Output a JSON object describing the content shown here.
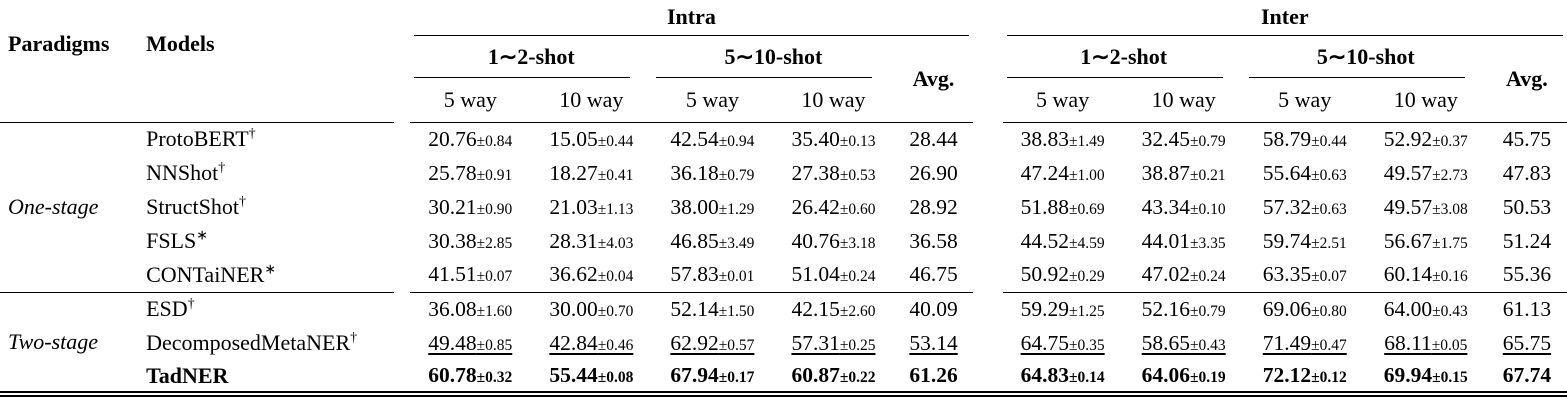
{
  "header": {
    "paradigms": "Paradigms",
    "models": "Models",
    "intra": "Intra",
    "inter": "Inter",
    "shot12": "1∼2-shot",
    "shot510": "5∼10-shot",
    "way5": "5 way",
    "way10": "10 way",
    "avg": "Avg."
  },
  "chart_data": {
    "type": "table",
    "title": "Few-shot NER results: Intra and Inter settings, F1 with std dev",
    "column_groups": [
      "Intra 1∼2-shot 5 way",
      "Intra 1∼2-shot 10 way",
      "Intra 5∼10-shot 5 way",
      "Intra 5∼10-shot 10 way",
      "Intra Avg.",
      "Inter 1∼2-shot 5 way",
      "Inter 1∼2-shot 10 way",
      "Inter 5∼10-shot 5 way",
      "Inter 5∼10-shot 10 way",
      "Inter Avg."
    ]
  },
  "table": {
    "groups": [
      {
        "paradigm": "One-stage",
        "rows": [
          {
            "model": "ProtoBERT",
            "sup": "†",
            "style": "normal",
            "cells": [
              "20.76±0.84",
              "15.05±0.44",
              "42.54±0.94",
              "35.40±0.13",
              "28.44",
              "38.83±1.49",
              "32.45±0.79",
              "58.79±0.44",
              "52.92±0.37",
              "45.75"
            ]
          },
          {
            "model": "NNShot",
            "sup": "†",
            "style": "normal",
            "cells": [
              "25.78±0.91",
              "18.27±0.41",
              "36.18±0.79",
              "27.38±0.53",
              "26.90",
              "47.24±1.00",
              "38.87±0.21",
              "55.64±0.63",
              "49.57±2.73",
              "47.83"
            ]
          },
          {
            "model": "StructShot",
            "sup": "†",
            "style": "normal",
            "cells": [
              "30.21±0.90",
              "21.03±1.13",
              "38.00±1.29",
              "26.42±0.60",
              "28.92",
              "51.88±0.69",
              "43.34±0.10",
              "57.32±0.63",
              "49.57±3.08",
              "50.53"
            ]
          },
          {
            "model": "FSLS",
            "sup": "∗",
            "style": "normal",
            "cells": [
              "30.38±2.85",
              "28.31±4.03",
              "46.85±3.49",
              "40.76±3.18",
              "36.58",
              "44.52±4.59",
              "44.01±3.35",
              "59.74±2.51",
              "56.67±1.75",
              "51.24"
            ]
          },
          {
            "model": "CONTaiNER",
            "sup": "∗",
            "style": "normal",
            "cells": [
              "41.51±0.07",
              "36.62±0.04",
              "57.83±0.01",
              "51.04±0.24",
              "46.75",
              "50.92±0.29",
              "47.02±0.24",
              "63.35±0.07",
              "60.14±0.16",
              "55.36"
            ]
          }
        ]
      },
      {
        "paradigm": "Two-stage",
        "rows": [
          {
            "model": "ESD",
            "sup": "†",
            "style": "normal",
            "cells": [
              "36.08±1.60",
              "30.00±0.70",
              "52.14±1.50",
              "42.15±2.60",
              "40.09",
              "59.29±1.25",
              "52.16±0.79",
              "69.06±0.80",
              "64.00±0.43",
              "61.13"
            ]
          },
          {
            "model": "DecomposedMetaNER",
            "sup": "†",
            "style": "underline",
            "cells": [
              "49.48±0.85",
              "42.84±0.46",
              "62.92±0.57",
              "57.31±0.25",
              "53.14",
              "64.75±0.35",
              "58.65±0.43",
              "71.49±0.47",
              "68.11±0.05",
              "65.75"
            ]
          },
          {
            "model": "TadNER",
            "sup": "",
            "style": "bold",
            "cells": [
              "60.78±0.32",
              "55.44±0.08",
              "67.94±0.17",
              "60.87±0.22",
              "61.26",
              "64.83±0.14",
              "64.06±0.19",
              "72.12±0.12",
              "69.94±0.15",
              "67.74"
            ]
          }
        ]
      }
    ]
  }
}
